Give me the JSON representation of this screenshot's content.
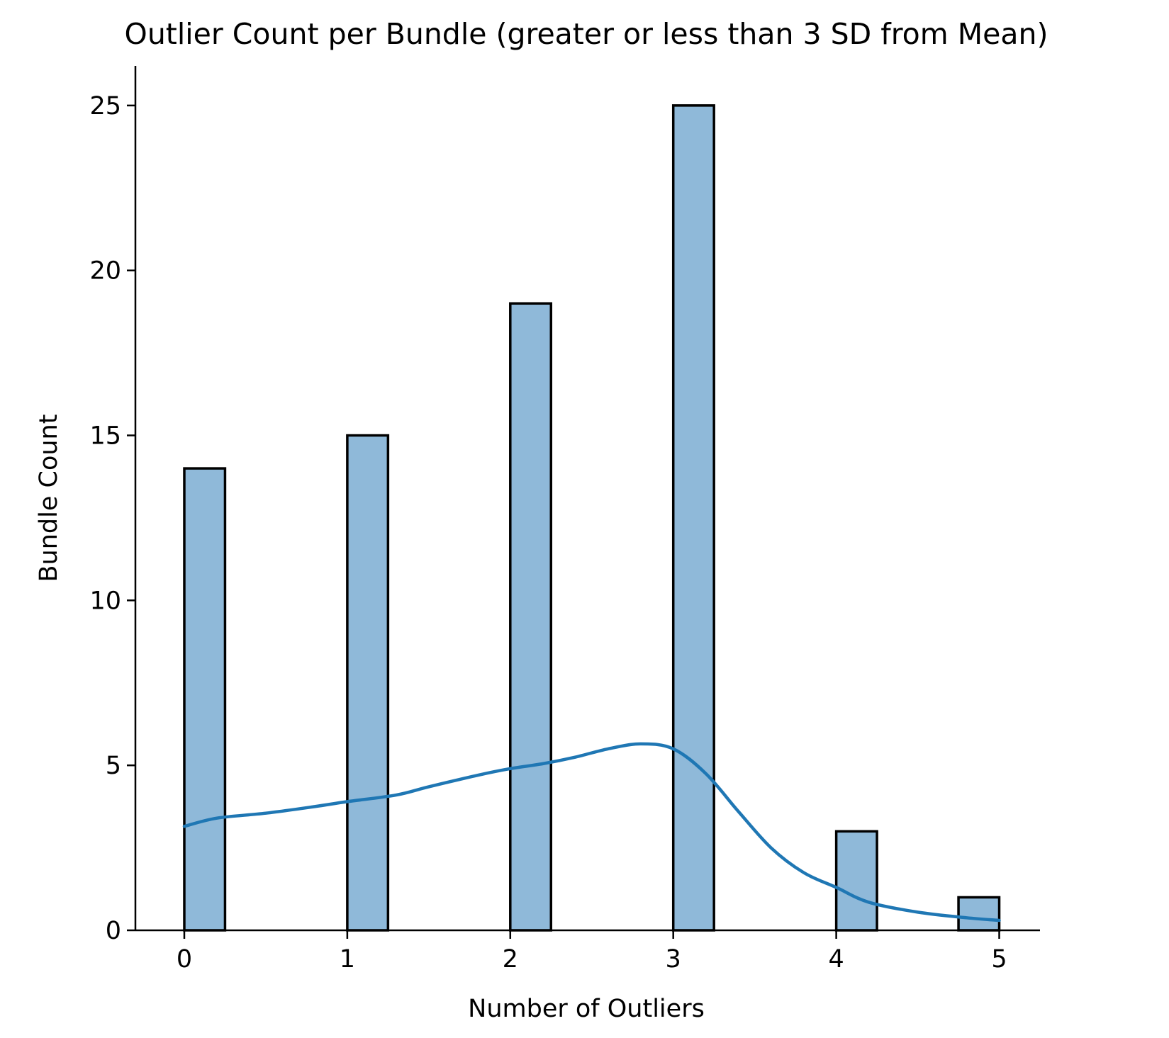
{
  "chart_data": {
    "type": "bar",
    "title": "Outlier Count per Bundle (greater or less than 3 SD from Mean)",
    "xlabel": "Number of Outliers",
    "ylabel": "Bundle Count",
    "xlim": [
      -0.3,
      5.25
    ],
    "ylim": [
      0,
      26.2
    ],
    "xticks": [
      0,
      1,
      2,
      3,
      4,
      5
    ],
    "yticks": [
      0,
      5,
      10,
      15,
      20,
      25
    ],
    "bin_width": 0.25,
    "bars": [
      {
        "x_start": 0,
        "value": 14
      },
      {
        "x_start": 1,
        "value": 15
      },
      {
        "x_start": 2,
        "value": 19
      },
      {
        "x_start": 3,
        "value": 25
      },
      {
        "x_start": 4,
        "value": 3
      },
      {
        "x_start": 4.75,
        "value": 1
      }
    ],
    "kde": {
      "x": [
        0,
        0.2,
        0.5,
        0.8,
        1.0,
        1.3,
        1.5,
        1.8,
        2.0,
        2.2,
        2.4,
        2.6,
        2.8,
        3.0,
        3.2,
        3.4,
        3.6,
        3.8,
        4.0,
        4.2,
        4.5,
        4.8,
        5.0
      ],
      "y": [
        3.15,
        3.4,
        3.55,
        3.75,
        3.9,
        4.1,
        4.35,
        4.7,
        4.9,
        5.05,
        5.25,
        5.5,
        5.65,
        5.5,
        4.75,
        3.6,
        2.5,
        1.75,
        1.3,
        0.85,
        0.55,
        0.38,
        0.3
      ]
    },
    "bar_color": "#8fb9d9",
    "bar_edge_color": "#000000",
    "kde_color": "#1f77b4",
    "grid": false,
    "legend": "none"
  }
}
